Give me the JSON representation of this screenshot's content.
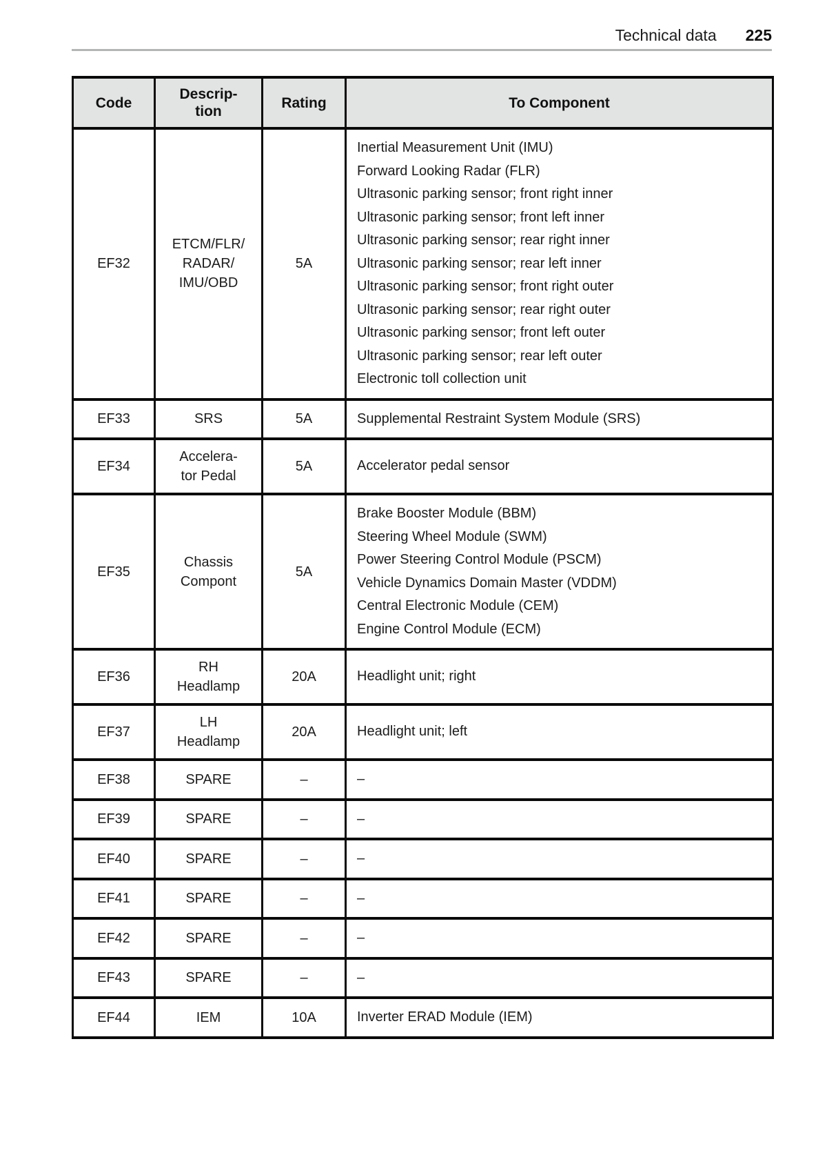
{
  "page_header": {
    "section_title": "Technical data",
    "page_number": "225"
  },
  "fuse_table": {
    "columns": {
      "code": "Code",
      "description": "Descrip-\ntion",
      "rating": "Rating",
      "to_component": "To Component"
    },
    "rows": [
      {
        "code": "EF32",
        "description": "ETCM/FLR/\nRADAR/\nIMU/OBD",
        "rating": "5A",
        "components": [
          "Inertial Measurement Unit (IMU)",
          "Forward Looking Radar (FLR)",
          "Ultrasonic parking sensor; front right inner",
          "Ultrasonic parking sensor; front left inner",
          "Ultrasonic parking sensor; rear right inner",
          "Ultrasonic parking sensor; rear left inner",
          "Ultrasonic parking sensor; front right outer",
          "Ultrasonic parking sensor; rear right outer",
          "Ultrasonic parking sensor; front left outer",
          "Ultrasonic parking sensor; rear left outer",
          "Electronic toll collection unit"
        ]
      },
      {
        "code": "EF33",
        "description": "SRS",
        "rating": "5A",
        "components": [
          "Supplemental Restraint System Module (SRS)"
        ]
      },
      {
        "code": "EF34",
        "description": "Accelera-\ntor Pedal",
        "rating": "5A",
        "components": [
          "Accelerator pedal sensor"
        ]
      },
      {
        "code": "EF35",
        "description": "Chassis\nCompont",
        "rating": "5A",
        "components": [
          "Brake Booster Module (BBM)",
          "Steering Wheel Module (SWM)",
          "Power Steering Control Module (PSCM)",
          "Vehicle Dynamics Domain Master (VDDM)",
          "Central Electronic Module (CEM)",
          "Engine Control Module (ECM)"
        ]
      },
      {
        "code": "EF36",
        "description": "RH\nHeadlamp",
        "rating": "20A",
        "components": [
          "Headlight unit; right"
        ]
      },
      {
        "code": "EF37",
        "description": "LH\nHeadlamp",
        "rating": "20A",
        "components": [
          "Headlight unit; left"
        ]
      },
      {
        "code": "EF38",
        "description": "SPARE",
        "rating": "–",
        "components": [
          "–"
        ]
      },
      {
        "code": "EF39",
        "description": "SPARE",
        "rating": "–",
        "components": [
          "–"
        ]
      },
      {
        "code": "EF40",
        "description": "SPARE",
        "rating": "–",
        "components": [
          "–"
        ]
      },
      {
        "code": "EF41",
        "description": "SPARE",
        "rating": "–",
        "components": [
          "–"
        ]
      },
      {
        "code": "EF42",
        "description": "SPARE",
        "rating": "–",
        "components": [
          "–"
        ]
      },
      {
        "code": "EF43",
        "description": "SPARE",
        "rating": "–",
        "components": [
          "–"
        ]
      },
      {
        "code": "EF44",
        "description": "IEM",
        "rating": "10A",
        "components": [
          "Inverter ERAD Module (IEM)"
        ]
      }
    ]
  },
  "colors": {
    "header_row_bg": "#e2e4e3",
    "table_border": "#0a0a0a",
    "text": "#1c1c1c",
    "header_rule": "#b4b6b5",
    "page_bg": "#ffffff"
  }
}
